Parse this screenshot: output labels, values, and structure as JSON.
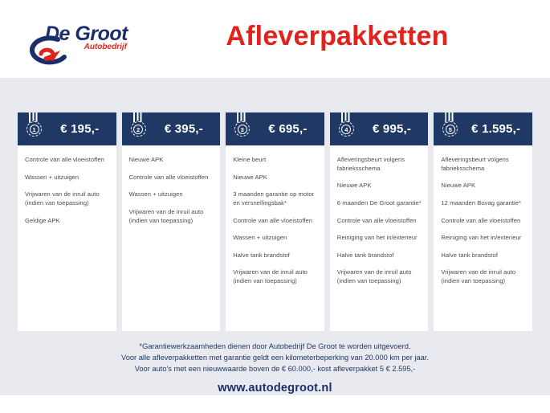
{
  "logo": {
    "brand": "De Groot",
    "sub": "Autobedrijf"
  },
  "header": {
    "title": "Afleverpakketten"
  },
  "packages": [
    {
      "number": "1",
      "price": "€ 195,-",
      "items": [
        "Controle van alle vloeistoffen",
        "Wassen + uitzuigen",
        "Vrijwaren van de inruil auto (indien van toepassing)",
        "Geldige APK"
      ]
    },
    {
      "number": "2",
      "price": "€ 395,-",
      "items": [
        "Nieuwe APK",
        "Controle van alle vloeistoffen",
        "Wassen + uitzuigen",
        "Vrijwaren van de inruil auto (indien van toepassing)"
      ]
    },
    {
      "number": "3",
      "price": "€ 695,-",
      "items": [
        "Kleine beurt",
        "Nieuwe APK",
        "3 maanden garantie op motor en versnellingsbak*",
        "Controle van alle vloeistoffen",
        "Wassen + uitzuigen",
        "Halve tank brandstof",
        "Vrijwaren van de inruil auto (indien van toepassing)"
      ]
    },
    {
      "number": "4",
      "price": "€ 995,-",
      "items": [
        "Afleveringsbeurt volgens fabrieksschema",
        "Nieuwe APK",
        "6 maanden De Groot garantie*",
        "Controle van alle vloeistoffen",
        "Reiniging van het in/exterieur",
        "Halve tank brandstof",
        "Vrijwaren van de inruil auto (indien van toepassing)"
      ]
    },
    {
      "number": "5",
      "price": "€ 1.595,-",
      "items": [
        "Afleveringsbeurt volgens fabrieksschema",
        "Nieuwe APK",
        "12 maanden Bovag garantie*",
        "Controle van alle vloeistoffen",
        "Reiniging van het in/exterieur",
        "Halve tank brandstof",
        "Vrijwaren van de inruil auto (indien van toepassing)"
      ]
    }
  ],
  "footer": {
    "disclaimer_lines": [
      "*Garantiewerkzaamheden dienen door Autobedrijf De Groot te worden uitgevoerd.",
      "Voor alle afleverpakketten met garantie geldt een kilometerbeperking van 20.000 km per jaar.",
      "Voor auto's met een nieuwwaarde boven de € 60.000,- kost afleverpakket 5 € 2.595,-"
    ],
    "website": "www.autodegroot.nl"
  },
  "colors": {
    "navy": "#1f3864",
    "red": "#e0231d",
    "background": "#e9eaef",
    "body_text": "#4b4b4b"
  }
}
